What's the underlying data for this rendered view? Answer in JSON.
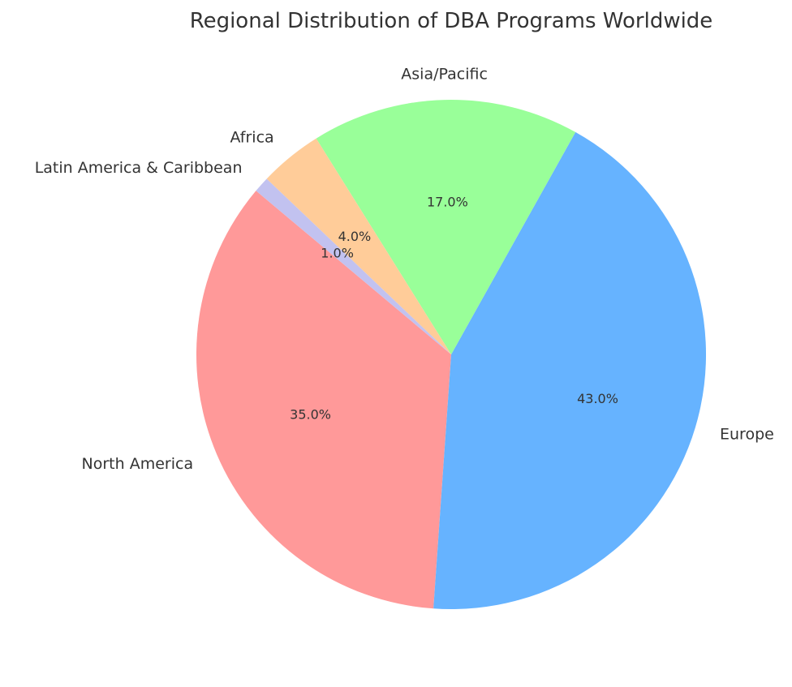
{
  "chart_data": {
    "type": "pie",
    "title": "Regional Distribution of DBA Programs Worldwide",
    "slices": [
      {
        "label": "North America",
        "value": 35.0,
        "pct_label": "35.0%",
        "color": "#ff9999"
      },
      {
        "label": "Europe",
        "value": 43.0,
        "pct_label": "43.0%",
        "color": "#66b3ff"
      },
      {
        "label": "Asia/Pacific",
        "value": 17.0,
        "pct_label": "17.0%",
        "color": "#99ff99"
      },
      {
        "label": "Africa",
        "value": 4.0,
        "pct_label": "4.0%",
        "color": "#ffcc99"
      },
      {
        "label": "Latin America & Caribbean",
        "value": 1.0,
        "pct_label": "1.0%",
        "color": "#c2c2f0"
      }
    ],
    "start_angle_deg": 140,
    "direction": "counterclockwise"
  }
}
